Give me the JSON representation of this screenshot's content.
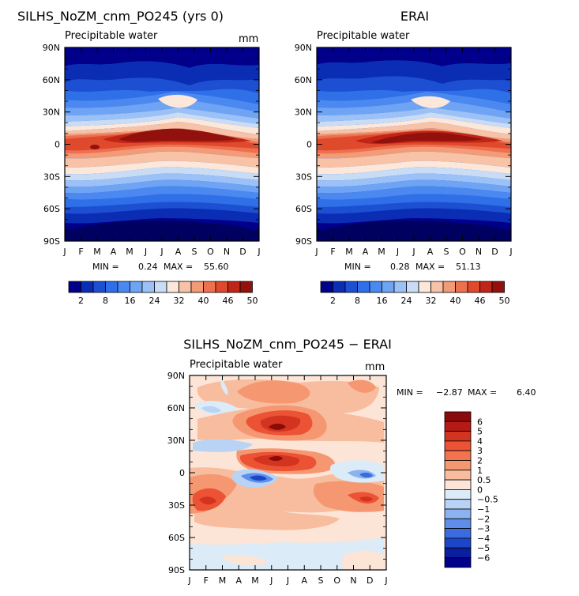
{
  "chart_data": [
    {
      "type": "heatmap",
      "title": "SILHS_NoZM_cnm_PO245 (yrs 0)",
      "subtitle": "Precipitable water",
      "units": "mm",
      "x_ticks": [
        "J",
        "F",
        "M",
        "A",
        "M",
        "J",
        "J",
        "A",
        "S",
        "O",
        "N",
        "D",
        "J"
      ],
      "y_ticks": [
        "90N",
        "60N",
        "30N",
        "0",
        "30S",
        "60S",
        "90S"
      ],
      "min_label": "MIN =",
      "min_value": "0.24",
      "max_label": "MAX =",
      "max_value": "55.60",
      "colorbar_labels": [
        "2",
        "8",
        "16",
        "24",
        "32",
        "40",
        "46",
        "50"
      ],
      "colors": [
        "#00008B",
        "#0A2DB4",
        "#1C4FD2",
        "#2F6FE8",
        "#4B89F0",
        "#6FA4F4",
        "#9CC1F7",
        "#C9DCF6",
        "#FCE7DB",
        "#F8C2A7",
        "#F39A77",
        "#ED7151",
        "#E04A2C",
        "#C02618",
        "#92110C"
      ],
      "levels": [
        2,
        5,
        8,
        12,
        16,
        20,
        24,
        28,
        32,
        36,
        40,
        43,
        46,
        48,
        50
      ]
    },
    {
      "type": "heatmap",
      "title": "ERAI",
      "subtitle": "Precipitable water",
      "units": "mm",
      "x_ticks": [
        "J",
        "F",
        "M",
        "A",
        "M",
        "J",
        "J",
        "A",
        "S",
        "O",
        "N",
        "D",
        "J"
      ],
      "y_ticks": [
        "90N",
        "60N",
        "30N",
        "0",
        "30S",
        "60S",
        "90S"
      ],
      "min_label": "MIN =",
      "min_value": "0.28",
      "max_label": "MAX =",
      "max_value": "51.13",
      "colorbar_labels": [
        "2",
        "8",
        "16",
        "24",
        "32",
        "40",
        "46",
        "50"
      ],
      "colors": [
        "#00008B",
        "#0A2DB4",
        "#1C4FD2",
        "#2F6FE8",
        "#4B89F0",
        "#6FA4F4",
        "#9CC1F7",
        "#C9DCF6",
        "#FCE7DB",
        "#F8C2A7",
        "#F39A77",
        "#ED7151",
        "#E04A2C",
        "#C02618",
        "#92110C"
      ],
      "levels": [
        2,
        5,
        8,
        12,
        16,
        20,
        24,
        28,
        32,
        36,
        40,
        43,
        46,
        48,
        50
      ]
    },
    {
      "type": "heatmap",
      "title": "SILHS_NoZM_cnm_PO245 − ERAI",
      "subtitle": "Precipitable water",
      "units": "mm",
      "x_ticks": [
        "J",
        "F",
        "M",
        "A",
        "M",
        "J",
        "J",
        "A",
        "S",
        "O",
        "N",
        "D",
        "J"
      ],
      "y_ticks": [
        "90N",
        "60N",
        "30N",
        "0",
        "30S",
        "60S",
        "90S"
      ],
      "min_label": "MIN =",
      "min_value": "−2.87",
      "max_label": "MAX =",
      "max_value": "6.40",
      "colorbar_labels": [
        "6",
        "5",
        "4",
        "3",
        "2",
        "1",
        "0.5",
        "0",
        "−0.5",
        "−1",
        "−2",
        "−3",
        "−4",
        "−5",
        "−6"
      ],
      "colors": [
        "#8B0A0A",
        "#B51A14",
        "#D33420",
        "#EC5234",
        "#F2744F",
        "#F59872",
        "#F8BC9E",
        "#FCE4D6",
        "#DCEBF8",
        "#B9D3F5",
        "#8CB3F0",
        "#5E8EE8",
        "#3A6CDF",
        "#1D45C8",
        "#0A1F9E",
        "#00008B"
      ]
    }
  ]
}
